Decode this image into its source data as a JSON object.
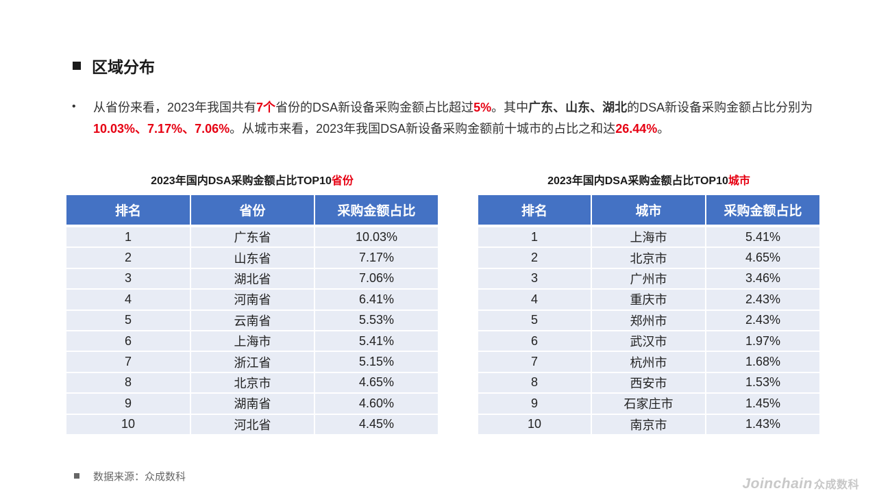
{
  "section": {
    "title": "区域分布"
  },
  "summary": {
    "p1": "从省份来看，2023年我国共有",
    "n_count": "7个",
    "p2": "省份的DSA新设备采购金额占比超过",
    "n_threshold": "5%",
    "p3": "。其中",
    "prov_names": "广东、山东、湖北",
    "p4": "的DSA新设备采购金额占比分别为",
    "prov_values": "10.03%、7.17%、7.06%",
    "p5": "。从城市来看，2023年我国DSA新设备采购金额前十城市的占比之和达",
    "city_total": "26.44%",
    "p6": "。"
  },
  "province_table": {
    "title_prefix": "2023年国内DSA采购金额占比TOP10",
    "title_highlight": "省份",
    "headers": [
      "排名",
      "省份",
      "采购金额占比"
    ],
    "rows": [
      [
        "1",
        "广东省",
        "10.03%"
      ],
      [
        "2",
        "山东省",
        "7.17%"
      ],
      [
        "3",
        "湖北省",
        "7.06%"
      ],
      [
        "4",
        "河南省",
        "6.41%"
      ],
      [
        "5",
        "云南省",
        "5.53%"
      ],
      [
        "6",
        "上海市",
        "5.41%"
      ],
      [
        "7",
        "浙江省",
        "5.15%"
      ],
      [
        "8",
        "北京市",
        "4.65%"
      ],
      [
        "9",
        "湖南省",
        "4.60%"
      ],
      [
        "10",
        "河北省",
        "4.45%"
      ]
    ]
  },
  "city_table": {
    "title_prefix": "2023年国内DSA采购金额占比TOP10",
    "title_highlight": "城市",
    "headers": [
      "排名",
      "城市",
      "采购金额占比"
    ],
    "rows": [
      [
        "1",
        "上海市",
        "5.41%"
      ],
      [
        "2",
        "北京市",
        "4.65%"
      ],
      [
        "3",
        "广州市",
        "3.46%"
      ],
      [
        "4",
        "重庆市",
        "2.43%"
      ],
      [
        "5",
        "郑州市",
        "2.43%"
      ],
      [
        "6",
        "武汉市",
        "1.97%"
      ],
      [
        "7",
        "杭州市",
        "1.68%"
      ],
      [
        "8",
        "西安市",
        "1.53%"
      ],
      [
        "9",
        "石家庄市",
        "1.45%"
      ],
      [
        "10",
        "南京市",
        "1.43%"
      ]
    ]
  },
  "source": {
    "text": "数据来源：众成数科"
  },
  "logo": {
    "en": "Joinchain",
    "cn": "众成数科"
  },
  "colors": {
    "header_bg": "#4472c4",
    "row_bg": "#e8ecf5",
    "highlight": "#e60012"
  }
}
